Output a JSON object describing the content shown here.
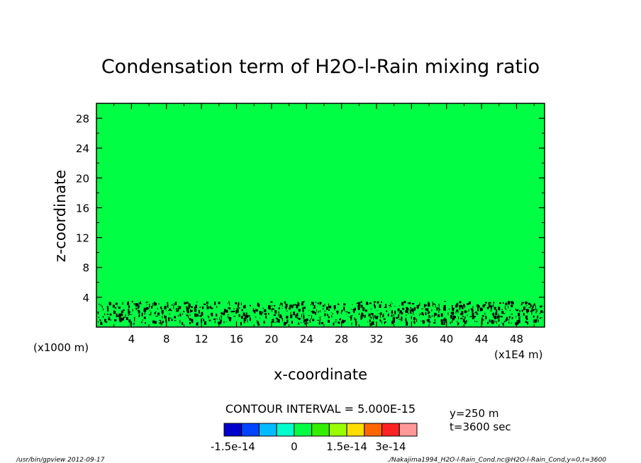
{
  "chart_data": {
    "type": "heatmap",
    "title": "Condensation term of H2O-l-Rain mixing ratio",
    "xlabel": "x-coordinate",
    "ylabel": "z-coordinate",
    "x_unit_left": "(x1000 m)",
    "x_unit_right": "(x1E4 m)",
    "xlim": [
      0,
      51.2
    ],
    "ylim": [
      0,
      30
    ],
    "x_ticks": [
      "4",
      "8",
      "12",
      "16",
      "20",
      "24",
      "28",
      "32",
      "36",
      "40",
      "44",
      "48"
    ],
    "y_ticks": [
      "4",
      "8",
      "12",
      "16",
      "20",
      "24",
      "28"
    ],
    "field": {
      "background_level": 0,
      "background_color": "#00ff44",
      "noise_band_z": [
        0,
        3.5
      ],
      "noise_color": "#000000",
      "note_colors": [
        "#00cc66",
        "#22ee99"
      ]
    },
    "contour_interval": "CONTOUR INTERVAL = 5.000E-15",
    "colorbar": {
      "colors": [
        "#0000cc",
        "#0044ff",
        "#00bbff",
        "#00ffcc",
        "#00ff44",
        "#33ee00",
        "#99ff00",
        "#ffdd00",
        "#ff6600",
        "#ff2222",
        "#ff9999"
      ],
      "tick_labels": [
        "-1.5e-14",
        "0",
        "1.5e-14",
        "3e-14"
      ]
    },
    "annotations": {
      "y_value": "y=250 m",
      "time_value": "t=3600 sec",
      "footer_left": "/usr/bin/gpview  2012-09-17",
      "footer_right": "./Nakajima1994_H2O-l-Rain_Cond.nc@H2O-l-Rain_Cond,y=0,t=3600"
    }
  }
}
